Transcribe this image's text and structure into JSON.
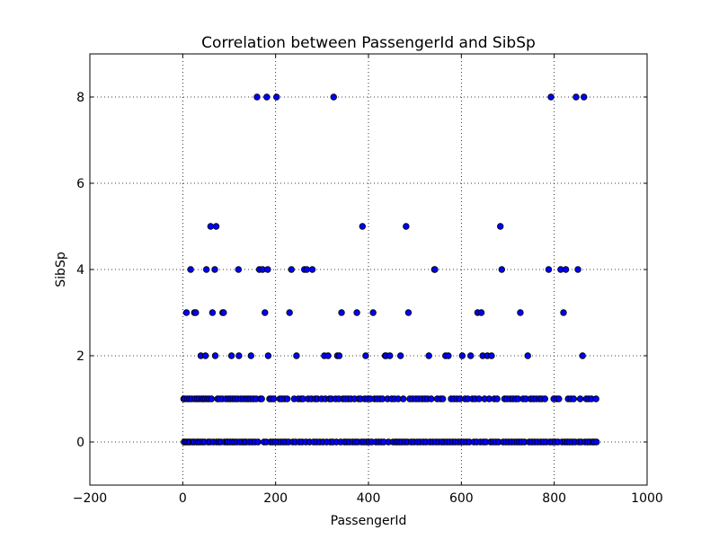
{
  "chart_data": {
    "type": "scatter",
    "title": "Correlation between PassengerId and SibSp",
    "xlabel": "PassengerId",
    "ylabel": "SibSp",
    "xlim": [
      -200,
      1000
    ],
    "ylim": [
      -1,
      9
    ],
    "xticks": [
      -200,
      0,
      200,
      400,
      600,
      800,
      1000
    ],
    "yticks": [
      0,
      2,
      4,
      6,
      8
    ],
    "xtick_labels": [
      "−200",
      "0",
      "200",
      "400",
      "600",
      "800",
      "1000"
    ],
    "ytick_labels": [
      "0",
      "2",
      "4",
      "6",
      "8"
    ],
    "grid": true,
    "marker_color": "#0000ff",
    "marker_edge": "#000000",
    "points": [
      [
        160,
        8
      ],
      [
        181,
        8
      ],
      [
        202,
        8
      ],
      [
        325,
        8
      ],
      [
        793,
        8
      ],
      [
        847,
        8
      ],
      [
        864,
        8
      ],
      [
        60,
        5
      ],
      [
        72,
        5
      ],
      [
        387,
        5
      ],
      [
        481,
        5
      ],
      [
        684,
        5
      ],
      [
        17,
        4
      ],
      [
        51,
        4
      ],
      [
        69,
        4
      ],
      [
        120,
        4
      ],
      [
        165,
        4
      ],
      [
        172,
        4
      ],
      [
        183,
        4
      ],
      [
        234,
        4
      ],
      [
        262,
        4
      ],
      [
        267,
        4
      ],
      [
        279,
        4
      ],
      [
        542,
        4
      ],
      [
        543,
        4
      ],
      [
        687,
        4
      ],
      [
        788,
        4
      ],
      [
        814,
        4
      ],
      [
        825,
        4
      ],
      [
        851,
        4
      ],
      [
        8,
        3
      ],
      [
        25,
        3
      ],
      [
        28,
        3
      ],
      [
        64,
        3
      ],
      [
        86,
        3
      ],
      [
        88,
        3
      ],
      [
        177,
        3
      ],
      [
        230,
        3
      ],
      [
        342,
        3
      ],
      [
        375,
        3
      ],
      [
        410,
        3
      ],
      [
        486,
        3
      ],
      [
        635,
        3
      ],
      [
        643,
        3
      ],
      [
        727,
        3
      ],
      [
        820,
        3
      ],
      [
        39,
        2
      ],
      [
        49,
        2
      ],
      [
        70,
        2
      ],
      [
        105,
        2
      ],
      [
        121,
        2
      ],
      [
        147,
        2
      ],
      [
        184,
        2
      ],
      [
        245,
        2
      ],
      [
        305,
        2
      ],
      [
        313,
        2
      ],
      [
        333,
        2
      ],
      [
        337,
        2
      ],
      [
        394,
        2
      ],
      [
        436,
        2
      ],
      [
        438,
        2
      ],
      [
        446,
        2
      ],
      [
        469,
        2
      ],
      [
        530,
        2
      ],
      [
        566,
        2
      ],
      [
        572,
        2
      ],
      [
        602,
        2
      ],
      [
        620,
        2
      ],
      [
        646,
        2
      ],
      [
        656,
        2
      ],
      [
        665,
        2
      ],
      [
        743,
        2
      ],
      [
        861,
        2
      ],
      [
        2,
        1
      ],
      [
        4,
        1
      ],
      [
        10,
        1
      ],
      [
        14,
        1
      ],
      [
        19,
        1
      ],
      [
        26,
        1
      ],
      [
        31,
        1
      ],
      [
        35,
        1
      ],
      [
        41,
        1
      ],
      [
        44,
        1
      ],
      [
        48,
        1
      ],
      [
        53,
        1
      ],
      [
        57,
        1
      ],
      [
        62,
        1
      ],
      [
        75,
        1
      ],
      [
        79,
        1
      ],
      [
        85,
        1
      ],
      [
        93,
        1
      ],
      [
        99,
        1
      ],
      [
        103,
        1
      ],
      [
        108,
        1
      ],
      [
        113,
        1
      ],
      [
        118,
        1
      ],
      [
        125,
        1
      ],
      [
        131,
        1
      ],
      [
        137,
        1
      ],
      [
        141,
        1
      ],
      [
        146,
        1
      ],
      [
        152,
        1
      ],
      [
        158,
        1
      ],
      [
        167,
        1
      ],
      [
        170,
        1
      ],
      [
        187,
        1
      ],
      [
        191,
        1
      ],
      [
        196,
        1
      ],
      [
        209,
        1
      ],
      [
        213,
        1
      ],
      [
        219,
        1
      ],
      [
        225,
        1
      ],
      [
        240,
        1
      ],
      [
        249,
        1
      ],
      [
        255,
        1
      ],
      [
        259,
        1
      ],
      [
        270,
        1
      ],
      [
        277,
        1
      ],
      [
        285,
        1
      ],
      [
        290,
        1
      ],
      [
        299,
        1
      ],
      [
        307,
        1
      ],
      [
        316,
        1
      ],
      [
        320,
        1
      ],
      [
        329,
        1
      ],
      [
        336,
        1
      ],
      [
        345,
        1
      ],
      [
        350,
        1
      ],
      [
        356,
        1
      ],
      [
        362,
        1
      ],
      [
        370,
        1
      ],
      [
        379,
        1
      ],
      [
        383,
        1
      ],
      [
        392,
        1
      ],
      [
        398,
        1
      ],
      [
        404,
        1
      ],
      [
        413,
        1
      ],
      [
        419,
        1
      ],
      [
        425,
        1
      ],
      [
        430,
        1
      ],
      [
        441,
        1
      ],
      [
        450,
        1
      ],
      [
        456,
        1
      ],
      [
        464,
        1
      ],
      [
        475,
        1
      ],
      [
        489,
        1
      ],
      [
        495,
        1
      ],
      [
        502,
        1
      ],
      [
        508,
        1
      ],
      [
        515,
        1
      ],
      [
        521,
        1
      ],
      [
        527,
        1
      ],
      [
        535,
        1
      ],
      [
        548,
        1
      ],
      [
        555,
        1
      ],
      [
        560,
        1
      ],
      [
        578,
        1
      ],
      [
        584,
        1
      ],
      [
        590,
        1
      ],
      [
        597,
        1
      ],
      [
        608,
        1
      ],
      [
        614,
        1
      ],
      [
        624,
        1
      ],
      [
        630,
        1
      ],
      [
        638,
        1
      ],
      [
        650,
        1
      ],
      [
        660,
        1
      ],
      [
        671,
        1
      ],
      [
        677,
        1
      ],
      [
        693,
        1
      ],
      [
        698,
        1
      ],
      [
        705,
        1
      ],
      [
        711,
        1
      ],
      [
        717,
        1
      ],
      [
        722,
        1
      ],
      [
        733,
        1
      ],
      [
        739,
        1
      ],
      [
        749,
        1
      ],
      [
        755,
        1
      ],
      [
        761,
        1
      ],
      [
        768,
        1
      ],
      [
        773,
        1
      ],
      [
        780,
        1
      ],
      [
        799,
        1
      ],
      [
        805,
        1
      ],
      [
        810,
        1
      ],
      [
        830,
        1
      ],
      [
        836,
        1
      ],
      [
        842,
        1
      ],
      [
        856,
        1
      ],
      [
        869,
        1
      ],
      [
        874,
        1
      ],
      [
        880,
        1
      ],
      [
        890,
        1
      ],
      [
        3,
        0
      ],
      [
        6,
        0
      ],
      [
        9,
        0
      ],
      [
        13,
        0
      ],
      [
        16,
        0
      ],
      [
        22,
        0
      ],
      [
        24,
        0
      ],
      [
        30,
        0
      ],
      [
        34,
        0
      ],
      [
        38,
        0
      ],
      [
        43,
        0
      ],
      [
        47,
        0
      ],
      [
        55,
        0
      ],
      [
        59,
        0
      ],
      [
        66,
        0
      ],
      [
        73,
        0
      ],
      [
        78,
        0
      ],
      [
        82,
        0
      ],
      [
        90,
        0
      ],
      [
        95,
        0
      ],
      [
        97,
        0
      ],
      [
        102,
        0
      ],
      [
        107,
        0
      ],
      [
        111,
        0
      ],
      [
        116,
        0
      ],
      [
        123,
        0
      ],
      [
        128,
        0
      ],
      [
        133,
        0
      ],
      [
        136,
        0
      ],
      [
        143,
        0
      ],
      [
        149,
        0
      ],
      [
        155,
        0
      ],
      [
        162,
        0
      ],
      [
        175,
        0
      ],
      [
        180,
        0
      ],
      [
        189,
        0
      ],
      [
        194,
        0
      ],
      [
        199,
        0
      ],
      [
        205,
        0
      ],
      [
        211,
        0
      ],
      [
        217,
        0
      ],
      [
        222,
        0
      ],
      [
        228,
        0
      ],
      [
        237,
        0
      ],
      [
        243,
        0
      ],
      [
        251,
        0
      ],
      [
        257,
        0
      ],
      [
        265,
        0
      ],
      [
        273,
        0
      ],
      [
        282,
        0
      ],
      [
        288,
        0
      ],
      [
        295,
        0
      ],
      [
        302,
        0
      ],
      [
        310,
        0
      ],
      [
        318,
        0
      ],
      [
        323,
        0
      ],
      [
        331,
        0
      ],
      [
        340,
        0
      ],
      [
        348,
        0
      ],
      [
        353,
        0
      ],
      [
        359,
        0
      ],
      [
        366,
        0
      ],
      [
        372,
        0
      ],
      [
        377,
        0
      ],
      [
        385,
        0
      ],
      [
        390,
        0
      ],
      [
        396,
        0
      ],
      [
        401,
        0
      ],
      [
        407,
        0
      ],
      [
        416,
        0
      ],
      [
        422,
        0
      ],
      [
        428,
        0
      ],
      [
        433,
        0
      ],
      [
        443,
        0
      ],
      [
        453,
        0
      ],
      [
        459,
        0
      ],
      [
        462,
        0
      ],
      [
        467,
        0
      ],
      [
        472,
        0
      ],
      [
        478,
        0
      ],
      [
        484,
        0
      ],
      [
        492,
        0
      ],
      [
        498,
        0
      ],
      [
        505,
        0
      ],
      [
        511,
        0
      ],
      [
        518,
        0
      ],
      [
        524,
        0
      ],
      [
        532,
        0
      ],
      [
        538,
        0
      ],
      [
        545,
        0
      ],
      [
        551,
        0
      ],
      [
        558,
        0
      ],
      [
        563,
        0
      ],
      [
        569,
        0
      ],
      [
        575,
        0
      ],
      [
        581,
        0
      ],
      [
        587,
        0
      ],
      [
        593,
        0
      ],
      [
        599,
        0
      ],
      [
        605,
        0
      ],
      [
        611,
        0
      ],
      [
        617,
        0
      ],
      [
        627,
        0
      ],
      [
        633,
        0
      ],
      [
        641,
        0
      ],
      [
        648,
        0
      ],
      [
        653,
        0
      ],
      [
        663,
        0
      ],
      [
        668,
        0
      ],
      [
        674,
        0
      ],
      [
        680,
        0
      ],
      [
        690,
        0
      ],
      [
        696,
        0
      ],
      [
        702,
        0
      ],
      [
        708,
        0
      ],
      [
        714,
        0
      ],
      [
        720,
        0
      ],
      [
        725,
        0
      ],
      [
        730,
        0
      ],
      [
        736,
        0
      ],
      [
        746,
        0
      ],
      [
        752,
        0
      ],
      [
        758,
        0
      ],
      [
        764,
        0
      ],
      [
        771,
        0
      ],
      [
        777,
        0
      ],
      [
        783,
        0
      ],
      [
        791,
        0
      ],
      [
        796,
        0
      ],
      [
        802,
        0
      ],
      [
        808,
        0
      ],
      [
        817,
        0
      ],
      [
        823,
        0
      ],
      [
        828,
        0
      ],
      [
        833,
        0
      ],
      [
        839,
        0
      ],
      [
        845,
        0
      ],
      [
        853,
        0
      ],
      [
        858,
        0
      ],
      [
        866,
        0
      ],
      [
        872,
        0
      ],
      [
        877,
        0
      ],
      [
        883,
        0
      ],
      [
        886,
        0
      ],
      [
        891,
        0
      ]
    ]
  }
}
